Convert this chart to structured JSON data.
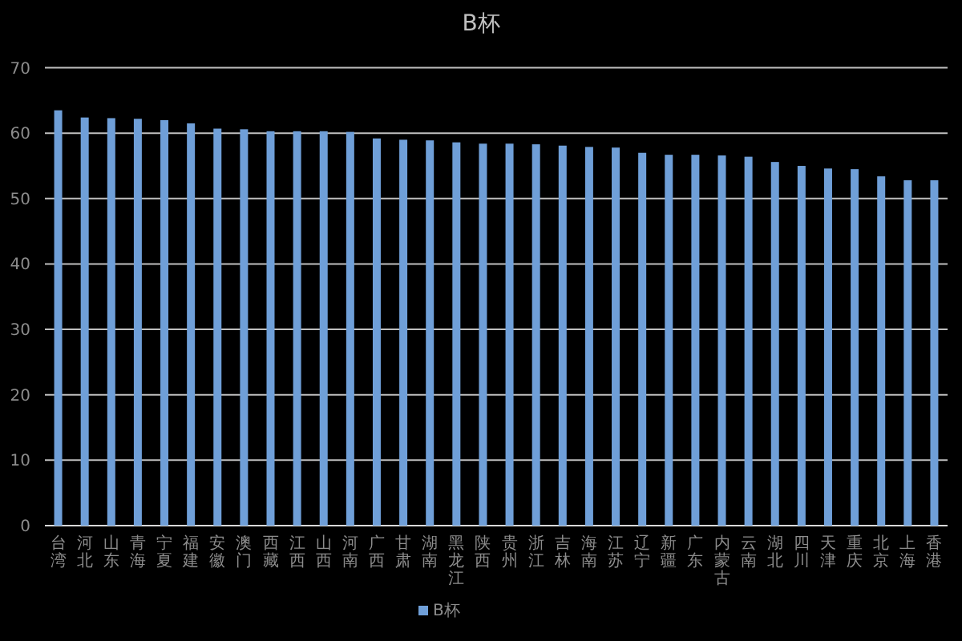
{
  "chart_data": {
    "type": "bar",
    "title": "B杯",
    "categories": [
      "台湾",
      "河北",
      "山东",
      "青海",
      "宁夏",
      "福建",
      "安徽",
      "澳门",
      "西藏",
      "江西",
      "山西",
      "河南",
      "广西",
      "甘肃",
      "湖南",
      "黑龙江",
      "陕西",
      "贵州",
      "浙江",
      "吉林",
      "海南",
      "江苏",
      "辽宁",
      "新疆",
      "广东",
      "内蒙古",
      "云南",
      "湖北",
      "四川",
      "天津",
      "重庆",
      "北京",
      "上海",
      "香港"
    ],
    "series": [
      {
        "name": "B杯",
        "color": "#6f9fd8",
        "values": [
          63.5,
          62.4,
          62.3,
          62.2,
          62.0,
          61.5,
          60.7,
          60.6,
          60.3,
          60.3,
          60.3,
          60.2,
          59.2,
          59.0,
          58.9,
          58.6,
          58.4,
          58.4,
          58.3,
          58.1,
          57.9,
          57.8,
          57.0,
          56.7,
          56.7,
          56.6,
          56.4,
          55.6,
          55.0,
          54.6,
          54.5,
          53.4,
          52.8,
          52.8
        ]
      }
    ],
    "ylim": [
      0,
      70
    ],
    "yticks": [
      0,
      10,
      20,
      30,
      40,
      50,
      60,
      70
    ],
    "grid": "y",
    "legend": "bottom"
  }
}
